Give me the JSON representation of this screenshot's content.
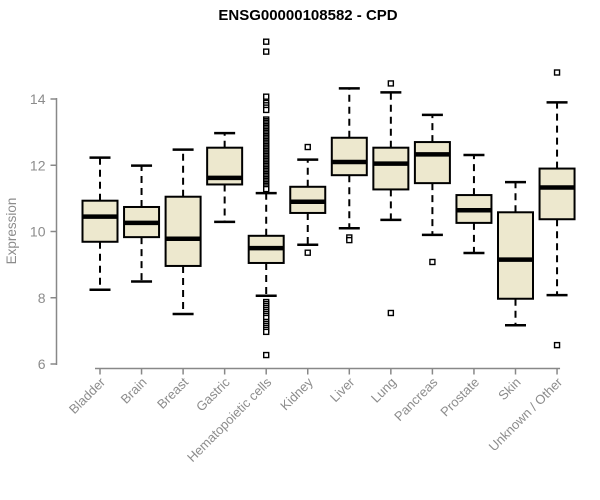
{
  "chart_data": {
    "type": "boxplot",
    "title": "ENSG00000108582 - CPD",
    "ylabel": "Expression",
    "xlabel": "",
    "ylim": [
      6,
      14
    ],
    "yticks": [
      6,
      8,
      10,
      12,
      14
    ],
    "grid": false,
    "legend": false,
    "colors": {
      "box_fill": "#EDE8CE",
      "box_line": "#000000",
      "median_line": "#000000",
      "whisker_line": "#000000",
      "outlier_stroke": "#000000",
      "outlier_fill": "#ffffff",
      "axis": "#888888",
      "tick_label": "#8c8c8c",
      "title": "#000000"
    },
    "categories": [
      "Bladder",
      "Brain",
      "Breast",
      "Gastric",
      "Hematopoietic cells",
      "Kidney",
      "Liver",
      "Lung",
      "Pancreas",
      "Prostate",
      "Skin",
      "Unknown / Other"
    ],
    "boxes": [
      {
        "category": "Bladder",
        "whisker_low": 8.24,
        "q1": 9.69,
        "median": 10.45,
        "q3": 10.93,
        "whisker_high": 12.23,
        "outliers": []
      },
      {
        "category": "Brain",
        "whisker_low": 8.49,
        "q1": 9.83,
        "median": 10.26,
        "q3": 10.74,
        "whisker_high": 11.99,
        "outliers": []
      },
      {
        "category": "Breast",
        "whisker_low": 7.51,
        "q1": 8.96,
        "median": 9.78,
        "q3": 11.05,
        "whisker_high": 12.47,
        "outliers": []
      },
      {
        "category": "Gastric",
        "whisker_low": 10.29,
        "q1": 11.42,
        "median": 11.62,
        "q3": 12.53,
        "whisker_high": 12.97,
        "outliers": []
      },
      {
        "category": "Hematopoietic cells",
        "whisker_low": 8.06,
        "q1": 9.05,
        "median": 9.5,
        "q3": 9.87,
        "whisker_high": 11.16,
        "outliers": [
          15.73,
          15.43,
          14.07,
          13.88,
          13.81,
          13.74,
          13.67,
          13.38,
          13.33,
          13.28,
          13.23,
          13.18,
          13.13,
          13.08,
          13.03,
          12.98,
          12.93,
          12.88,
          12.83,
          12.78,
          12.73,
          12.68,
          12.63,
          12.58,
          12.53,
          12.48,
          12.43,
          12.38,
          12.33,
          12.28,
          12.23,
          12.18,
          12.13,
          12.08,
          12.03,
          11.98,
          11.93,
          11.88,
          11.83,
          11.78,
          11.73,
          11.68,
          11.63,
          11.58,
          11.53,
          11.48,
          11.43,
          11.38,
          11.33,
          11.28,
          7.87,
          7.81,
          7.75,
          7.69,
          7.63,
          7.57,
          7.51,
          7.45,
          7.39,
          7.27,
          7.21,
          7.15,
          7.09,
          7.03,
          6.97,
          6.27
        ]
      },
      {
        "category": "Kidney",
        "whisker_low": 9.6,
        "q1": 10.56,
        "median": 10.9,
        "q3": 11.35,
        "whisker_high": 12.17,
        "outliers": [
          12.55,
          9.36
        ]
      },
      {
        "category": "Liver",
        "whisker_low": 10.1,
        "q1": 11.7,
        "median": 12.1,
        "q3": 12.83,
        "whisker_high": 14.32,
        "outliers": [
          9.82,
          9.74
        ]
      },
      {
        "category": "Lung",
        "whisker_low": 10.35,
        "q1": 11.27,
        "median": 12.05,
        "q3": 12.53,
        "whisker_high": 14.2,
        "outliers": [
          14.47,
          7.54
        ]
      },
      {
        "category": "Pancreas",
        "whisker_low": 9.9,
        "q1": 11.46,
        "median": 12.33,
        "q3": 12.7,
        "whisker_high": 13.52,
        "outliers": [
          9.08
        ]
      },
      {
        "category": "Prostate",
        "whisker_low": 9.35,
        "q1": 10.26,
        "median": 10.64,
        "q3": 11.1,
        "whisker_high": 12.31,
        "outliers": []
      },
      {
        "category": "Skin",
        "whisker_low": 7.17,
        "q1": 7.97,
        "median": 9.15,
        "q3": 10.58,
        "whisker_high": 11.49,
        "outliers": []
      },
      {
        "category": "Unknown / Other",
        "whisker_low": 8.08,
        "q1": 10.37,
        "median": 11.33,
        "q3": 11.9,
        "whisker_high": 13.9,
        "outliers": [
          14.8,
          6.57
        ]
      }
    ]
  }
}
